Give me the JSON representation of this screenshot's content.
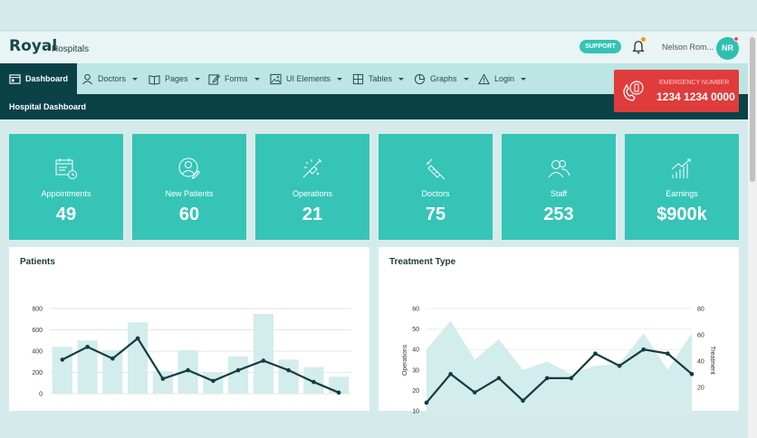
{
  "header": {
    "brand": "Royal",
    "brand_sub": "Hospitals",
    "support_label": "SUPPORT",
    "username": "Nelson Rom...",
    "avatar_initials": "NR"
  },
  "nav": {
    "items": [
      {
        "label": "Dashboard",
        "icon": "dashboard-icon",
        "active": true
      },
      {
        "label": "Doctors",
        "icon": "user-icon"
      },
      {
        "label": "Pages",
        "icon": "book-icon"
      },
      {
        "label": "Forms",
        "icon": "edit-icon"
      },
      {
        "label": "UI Elements",
        "icon": "image-icon"
      },
      {
        "label": "Tables",
        "icon": "table-icon"
      },
      {
        "label": "Graphs",
        "icon": "pie-chart-icon"
      },
      {
        "label": "Login",
        "icon": "warning-icon"
      }
    ]
  },
  "emergency": {
    "label": "EMERGENCY NUMBER",
    "number": "1234 1234 0000"
  },
  "page_title": "Hospital Dashboard",
  "stats": [
    {
      "label": "Appointments",
      "value": "49",
      "icon": "calendar-icon"
    },
    {
      "label": "New Patients",
      "value": "60",
      "icon": "patient-icon"
    },
    {
      "label": "Operations",
      "value": "21",
      "icon": "operation-icon"
    },
    {
      "label": "Doctors",
      "value": "75",
      "icon": "syringe-icon"
    },
    {
      "label": "Staff",
      "value": "253",
      "icon": "staff-icon"
    },
    {
      "label": "Earnings",
      "value": "$900k",
      "icon": "growth-icon"
    }
  ],
  "colors": {
    "accent": "#36c4b7",
    "dark": "#0a4248",
    "emergency": "#e03c3c"
  },
  "chart_data": [
    {
      "type": "bar",
      "title": "Patients",
      "ylim": [
        0,
        800
      ],
      "y_ticks": [
        "800",
        "600",
        "400",
        "200",
        "0"
      ],
      "bar_values": [
        440,
        500,
        410,
        670,
        210,
        410,
        200,
        350,
        750,
        320,
        250,
        160
      ],
      "line_values": [
        320,
        440,
        330,
        520,
        140,
        220,
        120,
        220,
        310,
        220,
        110,
        10
      ]
    },
    {
      "type": "area",
      "title": "Treatment Type",
      "ylabel": "Operations",
      "y2label": "Treatment",
      "ylim": [
        10,
        60
      ],
      "y_ticks": [
        "60",
        "50",
        "40",
        "30",
        "20",
        "10"
      ],
      "y2_ticks": [
        "80",
        "60",
        "40",
        "20"
      ],
      "area_values": [
        40,
        54,
        35,
        45,
        30,
        34,
        28,
        32,
        33,
        48,
        30,
        48
      ],
      "line_values": [
        14,
        28,
        19,
        26,
        15,
        26,
        26,
        38,
        32,
        40,
        38,
        28
      ]
    }
  ]
}
